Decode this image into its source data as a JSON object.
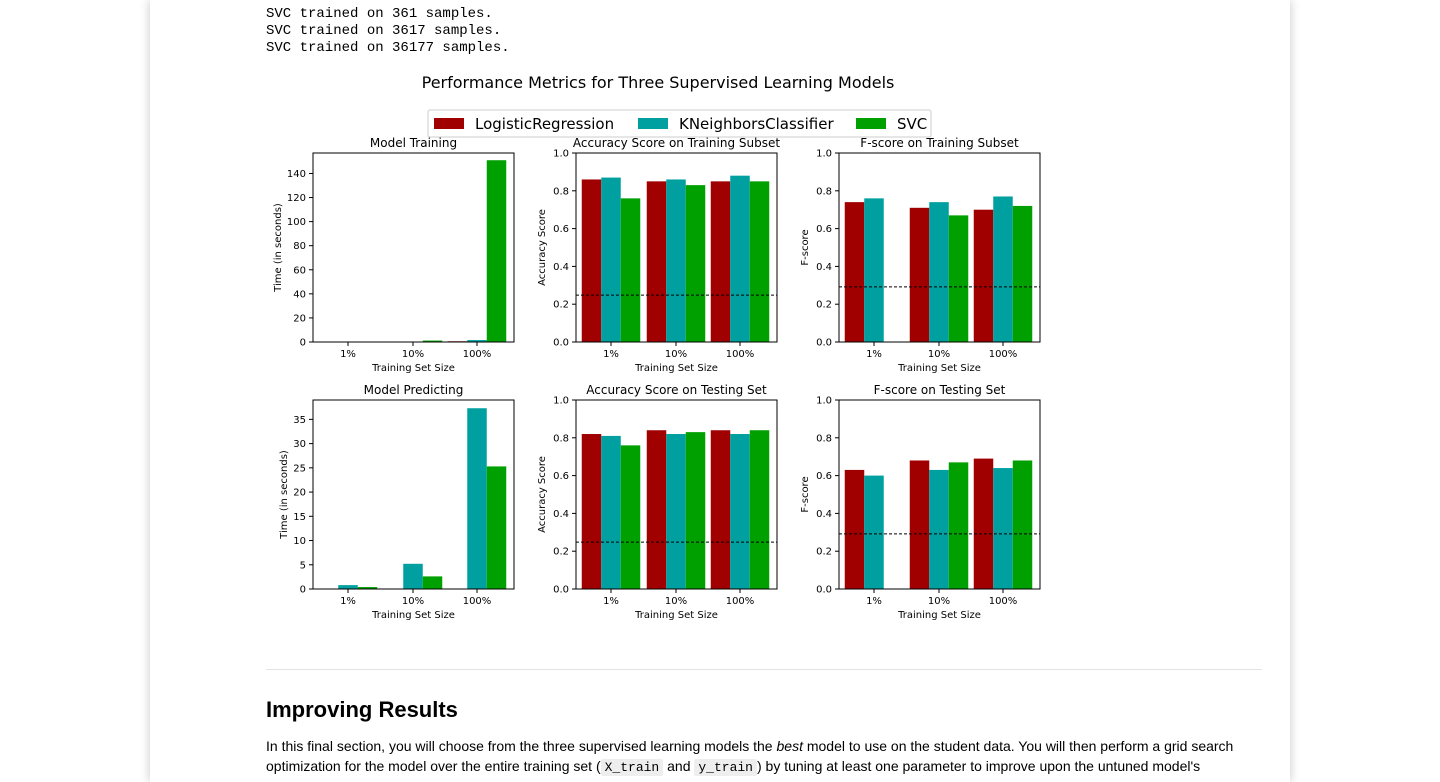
{
  "output_lines": [
    "SVC trained on 361 samples.",
    "SVC trained on 3617 samples.",
    "SVC trained on 36177 samples."
  ],
  "colors": {
    "LogisticRegression": "#a00000",
    "KNeighborsClassifier": "#00a0a0",
    "SVC": "#00a000"
  },
  "chart_data": {
    "type": "bar",
    "suptitle": "Performance Metrics for Three Supervised Learning Models",
    "legend": {
      "placement": "top-center",
      "entries": [
        "LogisticRegression",
        "KNeighborsClassifier",
        "SVC"
      ]
    },
    "categories": [
      "1%",
      "10%",
      "100%"
    ],
    "panels": [
      {
        "title": "Model Training",
        "xlabel": "Training Set Size",
        "ylabel": "Time (in seconds)",
        "ylim": [
          0,
          157
        ],
        "yticks": [
          0,
          20,
          40,
          60,
          80,
          100,
          120,
          140
        ],
        "series": [
          {
            "name": "LogisticRegression",
            "values": [
              0.01,
              0.05,
              0.6
            ]
          },
          {
            "name": "KNeighborsClassifier",
            "values": [
              0.01,
              0.1,
              1.6
            ]
          },
          {
            "name": "SVC",
            "values": [
              0.02,
              1.2,
              151
            ]
          }
        ]
      },
      {
        "title": "Accuracy Score on Training Subset",
        "xlabel": "Training Set Size",
        "ylabel": "Accuracy Score",
        "ylim": [
          0,
          1
        ],
        "yticks": [
          0.0,
          0.2,
          0.4,
          0.6,
          0.8,
          1.0
        ],
        "baseline": 0.2478,
        "series": [
          {
            "name": "LogisticRegression",
            "values": [
              0.86,
              0.85,
              0.85
            ]
          },
          {
            "name": "KNeighborsClassifier",
            "values": [
              0.87,
              0.86,
              0.88
            ]
          },
          {
            "name": "SVC",
            "values": [
              0.76,
              0.83,
              0.85
            ]
          }
        ]
      },
      {
        "title": "F-score on Training Subset",
        "xlabel": "Training Set Size",
        "ylabel": "F-score",
        "ylim": [
          0,
          1
        ],
        "yticks": [
          0.0,
          0.2,
          0.4,
          0.6,
          0.8,
          1.0
        ],
        "baseline": 0.2917,
        "series": [
          {
            "name": "LogisticRegression",
            "values": [
              0.74,
              0.71,
              0.7
            ]
          },
          {
            "name": "KNeighborsClassifier",
            "values": [
              0.76,
              0.74,
              0.77
            ]
          },
          {
            "name": "SVC",
            "values": [
              0.0,
              0.67,
              0.72
            ]
          }
        ]
      },
      {
        "title": "Model Predicting",
        "xlabel": "Training Set Size",
        "ylabel": "Time (in seconds)",
        "ylim": [
          0,
          39
        ],
        "yticks": [
          0,
          5,
          10,
          15,
          20,
          25,
          30,
          35
        ],
        "series": [
          {
            "name": "LogisticRegression",
            "values": [
              0.01,
              0.01,
              0.02
            ]
          },
          {
            "name": "KNeighborsClassifier",
            "values": [
              0.8,
              5.2,
              37.3
            ]
          },
          {
            "name": "SVC",
            "values": [
              0.4,
              2.6,
              25.3
            ]
          }
        ]
      },
      {
        "title": "Accuracy Score on Testing Set",
        "xlabel": "Training Set Size",
        "ylabel": "Accuracy Score",
        "ylim": [
          0,
          1
        ],
        "yticks": [
          0.0,
          0.2,
          0.4,
          0.6,
          0.8,
          1.0
        ],
        "baseline": 0.2478,
        "series": [
          {
            "name": "LogisticRegression",
            "values": [
              0.82,
              0.84,
              0.84
            ]
          },
          {
            "name": "KNeighborsClassifier",
            "values": [
              0.81,
              0.82,
              0.82
            ]
          },
          {
            "name": "SVC",
            "values": [
              0.76,
              0.83,
              0.84
            ]
          }
        ]
      },
      {
        "title": "F-score on Testing Set",
        "xlabel": "Training Set Size",
        "ylabel": "F-score",
        "ylim": [
          0,
          1
        ],
        "yticks": [
          0.0,
          0.2,
          0.4,
          0.6,
          0.8,
          1.0
        ],
        "baseline": 0.2917,
        "series": [
          {
            "name": "LogisticRegression",
            "values": [
              0.63,
              0.68,
              0.69
            ]
          },
          {
            "name": "KNeighborsClassifier",
            "values": [
              0.6,
              0.63,
              0.64
            ]
          },
          {
            "name": "SVC",
            "values": [
              0.0,
              0.67,
              0.68
            ]
          }
        ]
      }
    ]
  },
  "section": {
    "heading": "Improving Results",
    "para_part1": "In this final section, you will choose from the three supervised learning models the ",
    "para_em": "best",
    "para_part2": " model to use on the student data. You will then perform a grid search optimization for the model over the entire training set (",
    "code1": "X_train",
    "para_and": " and ",
    "code2": "y_train",
    "para_part3": ") by tuning at least one parameter to improve upon the untuned model's"
  }
}
